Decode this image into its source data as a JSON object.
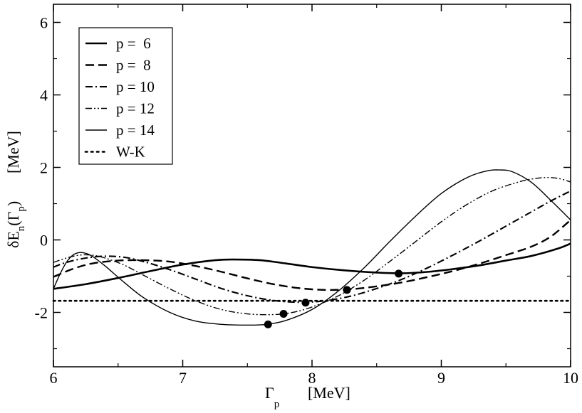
{
  "chart_data": {
    "type": "line",
    "title": "",
    "xlabel": {
      "symbol": "Γ",
      "subscript": "p",
      "unit": "[MeV]"
    },
    "ylabel": {
      "prefix": "δE",
      "sub1": "n",
      "paren_open": "(Γ",
      "sub2": "p",
      "paren_close": ")",
      "unit": "[MeV]"
    },
    "xlim": [
      6,
      10
    ],
    "ylim": [
      -3.5,
      6.5
    ],
    "xticks": [
      6,
      7,
      8,
      9,
      10
    ],
    "yticks": [
      -2,
      0,
      2,
      4,
      6
    ],
    "legend_position": "top-left",
    "series": [
      {
        "name": "p =  6",
        "style": "solid-thick",
        "points": [
          [
            6.0,
            -1.35
          ],
          [
            6.25,
            -1.22
          ],
          [
            6.5,
            -1.05
          ],
          [
            6.75,
            -0.86
          ],
          [
            7.0,
            -0.68
          ],
          [
            7.25,
            -0.56
          ],
          [
            7.4,
            -0.54
          ],
          [
            7.6,
            -0.56
          ],
          [
            7.8,
            -0.65
          ],
          [
            8.0,
            -0.75
          ],
          [
            8.25,
            -0.84
          ],
          [
            8.5,
            -0.9
          ],
          [
            8.7,
            -0.92
          ],
          [
            8.9,
            -0.88
          ],
          [
            9.1,
            -0.8
          ],
          [
            9.3,
            -0.7
          ],
          [
            9.5,
            -0.57
          ],
          [
            9.7,
            -0.44
          ],
          [
            9.9,
            -0.24
          ],
          [
            10.0,
            -0.1
          ]
        ],
        "marker": [
          8.67,
          -0.93
        ]
      },
      {
        "name": "p =  8",
        "style": "dashed",
        "points": [
          [
            6.0,
            -1.02
          ],
          [
            6.15,
            -0.8
          ],
          [
            6.3,
            -0.65
          ],
          [
            6.5,
            -0.57
          ],
          [
            6.7,
            -0.56
          ],
          [
            6.9,
            -0.6
          ],
          [
            7.1,
            -0.72
          ],
          [
            7.3,
            -0.88
          ],
          [
            7.5,
            -1.06
          ],
          [
            7.7,
            -1.22
          ],
          [
            7.9,
            -1.33
          ],
          [
            8.1,
            -1.38
          ],
          [
            8.3,
            -1.36
          ],
          [
            8.5,
            -1.28
          ],
          [
            8.7,
            -1.17
          ],
          [
            8.9,
            -1.02
          ],
          [
            9.1,
            -0.85
          ],
          [
            9.3,
            -0.65
          ],
          [
            9.5,
            -0.42
          ],
          [
            9.7,
            -0.18
          ],
          [
            9.85,
            0.1
          ],
          [
            10.0,
            0.55
          ]
        ],
        "marker": [
          8.27,
          -1.38
        ]
      },
      {
        "name": "p = 10",
        "style": "dash-dot",
        "points": [
          [
            6.0,
            -0.75
          ],
          [
            6.1,
            -0.62
          ],
          [
            6.25,
            -0.5
          ],
          [
            6.4,
            -0.45
          ],
          [
            6.55,
            -0.48
          ],
          [
            6.7,
            -0.6
          ],
          [
            6.9,
            -0.82
          ],
          [
            7.1,
            -1.08
          ],
          [
            7.3,
            -1.34
          ],
          [
            7.5,
            -1.54
          ],
          [
            7.7,
            -1.67
          ],
          [
            7.9,
            -1.72
          ],
          [
            8.1,
            -1.68
          ],
          [
            8.3,
            -1.55
          ],
          [
            8.5,
            -1.34
          ],
          [
            8.7,
            -1.08
          ],
          [
            8.9,
            -0.76
          ],
          [
            9.1,
            -0.4
          ],
          [
            9.3,
            -0.02
          ],
          [
            9.5,
            0.38
          ],
          [
            9.7,
            0.78
          ],
          [
            9.85,
            1.08
          ],
          [
            10.0,
            1.35
          ]
        ],
        "marker": [
          7.95,
          -1.73
        ]
      },
      {
        "name": "p = 12",
        "style": "dash-dot-dot",
        "points": [
          [
            6.0,
            -0.62
          ],
          [
            6.1,
            -0.5
          ],
          [
            6.2,
            -0.42
          ],
          [
            6.3,
            -0.42
          ],
          [
            6.4,
            -0.5
          ],
          [
            6.55,
            -0.7
          ],
          [
            6.7,
            -0.98
          ],
          [
            6.9,
            -1.35
          ],
          [
            7.1,
            -1.68
          ],
          [
            7.3,
            -1.92
          ],
          [
            7.5,
            -2.04
          ],
          [
            7.7,
            -2.06
          ],
          [
            7.85,
            -2.0
          ],
          [
            8.0,
            -1.85
          ],
          [
            8.2,
            -1.55
          ],
          [
            8.4,
            -1.12
          ],
          [
            8.6,
            -0.6
          ],
          [
            8.8,
            -0.05
          ],
          [
            9.0,
            0.5
          ],
          [
            9.2,
            0.98
          ],
          [
            9.4,
            1.36
          ],
          [
            9.6,
            1.6
          ],
          [
            9.7,
            1.68
          ],
          [
            9.8,
            1.72
          ],
          [
            9.9,
            1.7
          ],
          [
            10.0,
            1.6
          ]
        ],
        "marker": [
          7.78,
          -2.04
        ]
      },
      {
        "name": "p = 14",
        "style": "solid-thin",
        "points": [
          [
            6.0,
            -1.35
          ],
          [
            6.05,
            -0.95
          ],
          [
            6.1,
            -0.62
          ],
          [
            6.15,
            -0.42
          ],
          [
            6.2,
            -0.35
          ],
          [
            6.25,
            -0.37
          ],
          [
            6.3,
            -0.45
          ],
          [
            6.4,
            -0.72
          ],
          [
            6.55,
            -1.18
          ],
          [
            6.7,
            -1.6
          ],
          [
            6.9,
            -2.0
          ],
          [
            7.1,
            -2.24
          ],
          [
            7.3,
            -2.33
          ],
          [
            7.5,
            -2.35
          ],
          [
            7.65,
            -2.33
          ],
          [
            7.8,
            -2.22
          ],
          [
            8.0,
            -1.92
          ],
          [
            8.2,
            -1.42
          ],
          [
            8.4,
            -0.78
          ],
          [
            8.6,
            -0.05
          ],
          [
            8.8,
            0.65
          ],
          [
            9.0,
            1.28
          ],
          [
            9.2,
            1.72
          ],
          [
            9.35,
            1.9
          ],
          [
            9.45,
            1.93
          ],
          [
            9.55,
            1.88
          ],
          [
            9.7,
            1.58
          ],
          [
            9.85,
            1.08
          ],
          [
            10.0,
            0.55
          ]
        ],
        "marker": [
          7.66,
          -2.33
        ]
      },
      {
        "name": "W-K",
        "style": "dotted",
        "points": [
          [
            6.0,
            -1.68
          ],
          [
            10.0,
            -1.68
          ]
        ],
        "marker": null
      }
    ]
  }
}
